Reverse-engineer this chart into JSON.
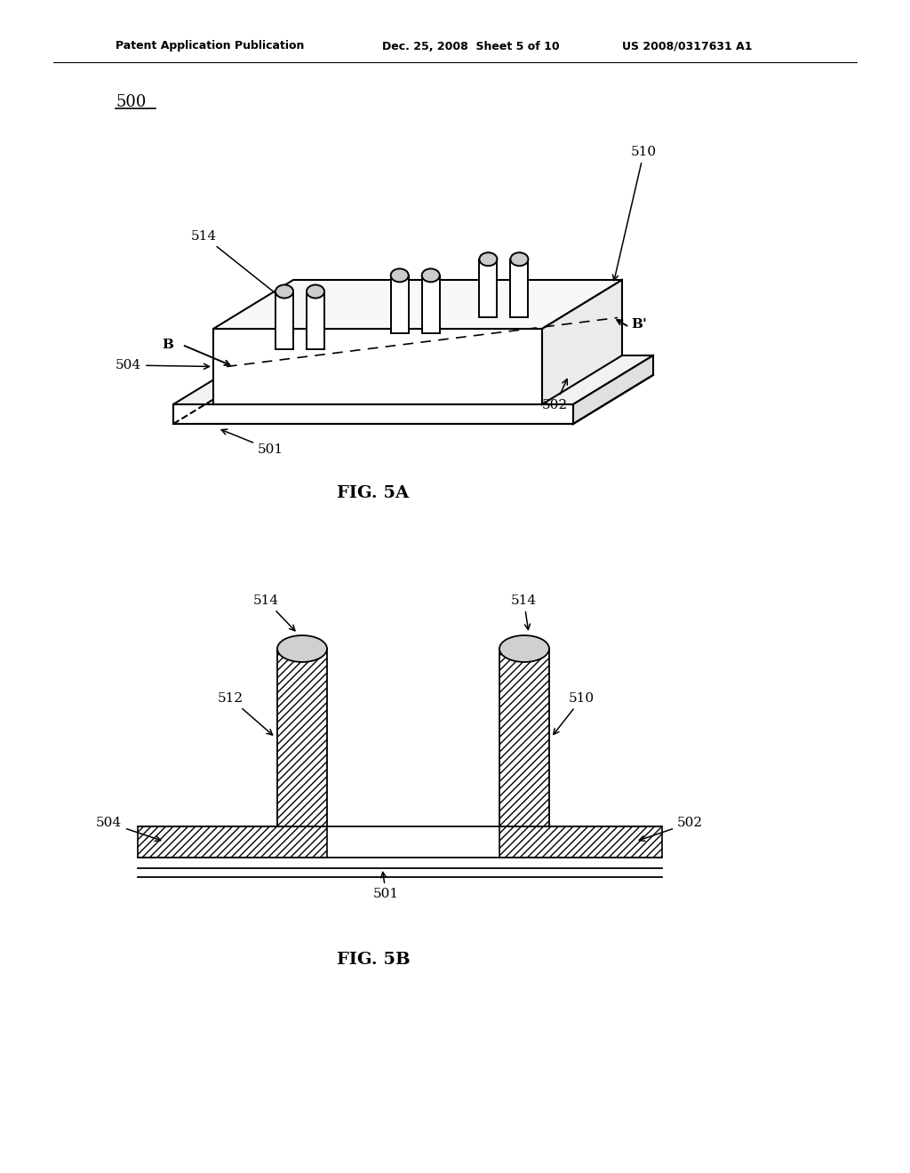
{
  "bg_color": "#ffffff",
  "line_color": "#000000",
  "header_text_left": "Patent Application Publication",
  "header_text_mid": "Dec. 25, 2008  Sheet 5 of 10",
  "header_text_right": "US 2008/0317631 A1",
  "fig5a_label": "FIG. 5A",
  "fig5b_label": "FIG. 5B",
  "label_500": "500",
  "label_501": "501",
  "label_502": "502",
  "label_504": "504",
  "label_510": "510",
  "label_512": "512",
  "label_514": "514",
  "label_B": "B",
  "label_Bprime": "B'"
}
